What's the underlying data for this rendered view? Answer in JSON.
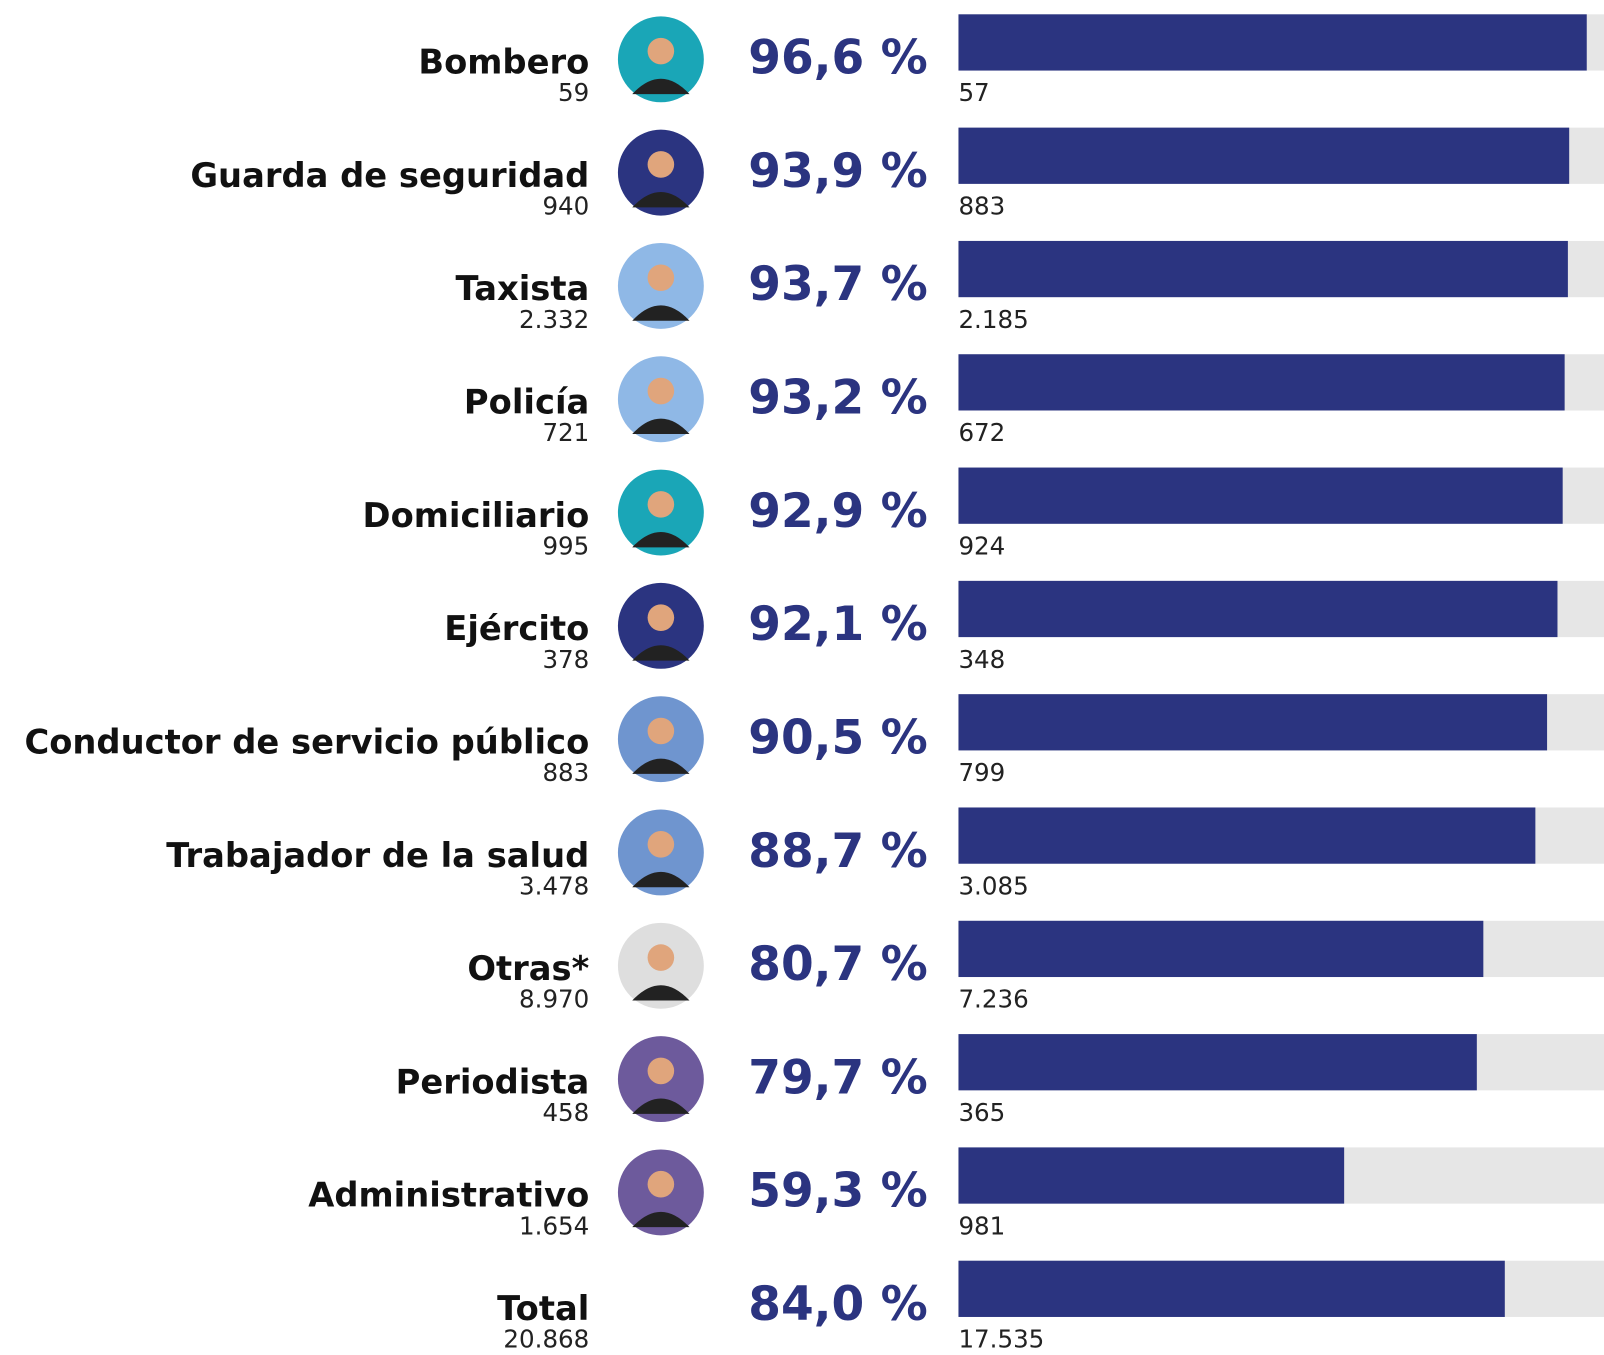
{
  "chart_data": {
    "type": "bar",
    "categories": [
      "Bombero",
      "Guarda de seguridad",
      "Taxista",
      "Policía",
      "Domiciliario",
      "Ejército",
      "Conductor de servicio público",
      "Trabajador de la salud",
      "Otras*",
      "Periodista",
      "Administrativo",
      "Total"
    ],
    "values": [
      96.6,
      93.9,
      93.7,
      93.2,
      92.9,
      92.1,
      90.5,
      88.7,
      80.7,
      79.7,
      59.3,
      84.0
    ],
    "value_labels": [
      "96,6 %",
      "93,9 %",
      "93,7 %",
      "93,2 %",
      "92,9 %",
      "92,1 %",
      "90,5 %",
      "88,7 %",
      "80,7 %",
      "79,7 %",
      "59,3 %",
      "84,0 %"
    ],
    "totals": [
      59,
      940,
      2332,
      721,
      995,
      378,
      883,
      3478,
      8970,
      458,
      1654,
      20868
    ],
    "total_labels": [
      "59",
      "940",
      "2.332",
      "721",
      "995",
      "378",
      "883",
      "3.478",
      "8.970",
      "458",
      "1.654",
      "20.868"
    ],
    "counts": [
      57,
      883,
      2185,
      672,
      924,
      348,
      799,
      3085,
      7236,
      365,
      981,
      17535
    ],
    "count_labels": [
      "57",
      "883",
      "2.185",
      "672",
      "924",
      "348",
      "799",
      "3.085",
      "7.236",
      "365",
      "981",
      "17.535"
    ],
    "xlim": [
      0,
      100
    ],
    "color": "#2b3480",
    "track_color": "#e6e6e6"
  }
}
